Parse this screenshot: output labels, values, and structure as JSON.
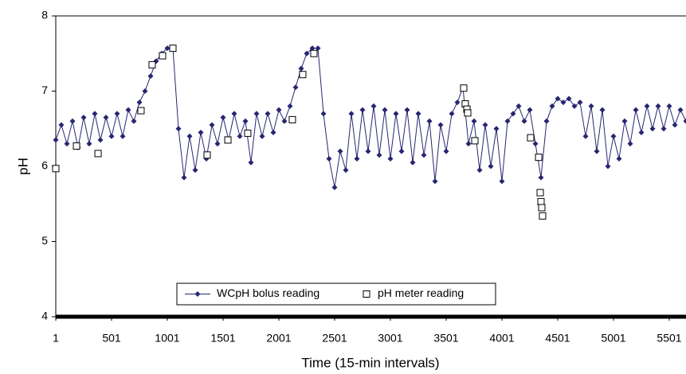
{
  "chart_data": {
    "type": "line",
    "ylabel": "pH",
    "xlabel": "Time (15-min intervals)",
    "xlim": [
      1,
      5651
    ],
    "xticks": [
      1,
      501,
      1001,
      1501,
      2001,
      2501,
      3001,
      3501,
      4001,
      4501,
      5001,
      5501
    ],
    "ylim": [
      4,
      8
    ],
    "yticks": [
      4,
      5,
      6,
      7,
      8
    ],
    "legend": "bottom",
    "series": [
      {
        "name": "WCpH bolus reading",
        "color": "#262673",
        "line": true,
        "marker": "diamond",
        "x": [
          1,
          51,
          101,
          151,
          201,
          251,
          301,
          351,
          401,
          451,
          501,
          551,
          601,
          651,
          701,
          751,
          801,
          851,
          901,
          951,
          1001,
          1051,
          1101,
          1151,
          1201,
          1251,
          1301,
          1351,
          1401,
          1451,
          1501,
          1551,
          1601,
          1651,
          1701,
          1751,
          1801,
          1851,
          1901,
          1951,
          2001,
          2051,
          2101,
          2151,
          2201,
          2251,
          2301,
          2351,
          2401,
          2451,
          2501,
          2551,
          2601,
          2651,
          2701,
          2751,
          2801,
          2851,
          2901,
          2951,
          3001,
          3051,
          3101,
          3151,
          3201,
          3251,
          3301,
          3351,
          3401,
          3451,
          3501,
          3551,
          3601,
          3651,
          3701,
          3751,
          3801,
          3851,
          3901,
          3951,
          4001,
          4051,
          4101,
          4151,
          4201,
          4251,
          4301,
          4351,
          4401,
          4451,
          4501,
          4551,
          4601,
          4651,
          4701,
          4751,
          4801,
          4851,
          4901,
          4951,
          5001,
          5051,
          5101,
          5151,
          5201,
          5251,
          5301,
          5351,
          5401,
          5451,
          5501,
          5551,
          5601,
          5651
        ],
        "values": [
          6.35,
          6.55,
          6.3,
          6.6,
          6.25,
          6.65,
          6.3,
          6.7,
          6.35,
          6.65,
          6.4,
          6.7,
          6.4,
          6.75,
          6.6,
          6.85,
          7.0,
          7.2,
          7.4,
          7.5,
          7.57,
          7.57,
          6.5,
          5.85,
          6.4,
          5.95,
          6.45,
          6.1,
          6.55,
          6.3,
          6.65,
          6.35,
          6.7,
          6.4,
          6.6,
          6.05,
          6.7,
          6.4,
          6.7,
          6.45,
          6.75,
          6.6,
          6.8,
          7.05,
          7.3,
          7.5,
          7.57,
          7.57,
          6.7,
          6.1,
          5.72,
          6.2,
          5.95,
          6.7,
          6.1,
          6.75,
          6.2,
          6.8,
          6.15,
          6.75,
          6.1,
          6.7,
          6.2,
          6.75,
          6.05,
          6.7,
          6.15,
          6.6,
          5.8,
          6.55,
          6.2,
          6.7,
          6.85,
          7.05,
          6.3,
          6.6,
          5.95,
          6.55,
          6.0,
          6.5,
          5.8,
          6.6,
          6.7,
          6.8,
          6.6,
          6.75,
          6.3,
          5.85,
          6.6,
          6.8,
          6.9,
          6.85,
          6.9,
          6.8,
          6.85,
          6.4,
          6.8,
          6.2,
          6.75,
          6.0,
          6.4,
          6.1,
          6.6,
          6.3,
          6.75,
          6.45,
          6.8,
          6.5,
          6.8,
          6.5,
          6.8,
          6.55,
          6.75,
          6.6
        ]
      },
      {
        "name": "pH meter reading",
        "color": "#000000",
        "line": false,
        "marker": "square",
        "x": [
          1,
          187,
          380,
          765,
          865,
          958,
          1051,
          1358,
          1544,
          1722,
          2122,
          2215,
          2315,
          3658,
          3672,
          3687,
          3694,
          3758,
          4258,
          4330,
          4344,
          4351,
          4358,
          4365
        ],
        "values": [
          5.97,
          6.27,
          6.17,
          6.74,
          7.35,
          7.47,
          7.57,
          6.15,
          6.35,
          6.44,
          6.62,
          7.22,
          7.5,
          7.04,
          6.83,
          6.76,
          6.71,
          6.34,
          6.38,
          6.12,
          5.65,
          5.53,
          5.45,
          5.34
        ]
      }
    ]
  }
}
